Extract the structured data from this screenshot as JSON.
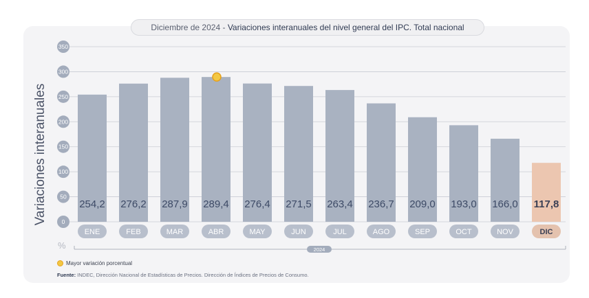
{
  "header": {
    "date_prefix": "Diciembre de 2024",
    "separator": " - ",
    "title": "Variaciones interanuales del nivel general del IPC. Total nacional"
  },
  "legend": {
    "label": "Mayor variación porcentual"
  },
  "footer": {
    "source_label": "Fuente:",
    "source_text": " INDEC, Dirección Nacional de Estadísticas de Precios. Dirección de Índices de Precios de Consumo."
  },
  "colors": {
    "bar": "#a9b2c1",
    "highlight_bar": "#ecc6b0",
    "tick_pill": "#b8bfcc",
    "highlight_tick": "#e4c2ae",
    "marker": "#f3c843"
  },
  "chart_data": {
    "type": "bar",
    "ylabel": "Variaciones interanuales",
    "unit": "%",
    "x_group_label": "2024",
    "ylim": [
      0,
      350
    ],
    "yticks": [
      0,
      50,
      100,
      150,
      200,
      250,
      300,
      350
    ],
    "grid": true,
    "categories": [
      "ENE",
      "FEB",
      "MAR",
      "ABR",
      "MAY",
      "JUN",
      "JUL",
      "AGO",
      "SEP",
      "OCT",
      "NOV",
      "DIC"
    ],
    "values": [
      254.2,
      276.2,
      287.9,
      289.4,
      276.4,
      271.5,
      263.4,
      236.7,
      209.0,
      193.0,
      166.0,
      117.8
    ],
    "value_labels": [
      "254,2",
      "276,2",
      "287,9",
      "289,4",
      "276,4",
      "271,5",
      "263,4",
      "236,7",
      "209,0",
      "193,0",
      "166,0",
      "117,8"
    ],
    "highlight_category": "DIC",
    "max_marker_category": "ABR"
  }
}
